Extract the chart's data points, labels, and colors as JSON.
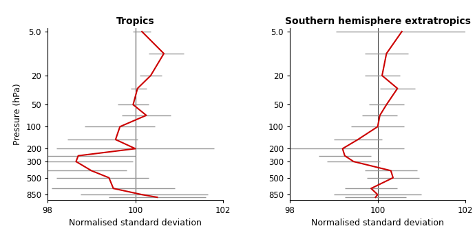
{
  "panel1_title": "Tropics",
  "panel2_title": "Southern hemisphere extratropics",
  "xlabel": "Normalised standard deviation",
  "ylabel": "Pressure (hPa)",
  "xlim": [
    98,
    102
  ],
  "xticks": [
    98,
    100,
    102
  ],
  "pressure_levels": [
    5,
    10,
    20,
    30,
    50,
    70,
    100,
    150,
    200,
    250,
    300,
    400,
    500,
    700,
    850,
    925
  ],
  "ytick_labels": [
    "5.0",
    "20",
    "50",
    "100",
    "200",
    "300",
    "500",
    "850"
  ],
  "ytick_vals": [
    5,
    20,
    50,
    100,
    200,
    300,
    500,
    850
  ],
  "panel1_values": [
    100.15,
    100.65,
    100.35,
    100.05,
    99.95,
    100.25,
    99.65,
    99.55,
    100.0,
    98.7,
    98.65,
    99.0,
    99.4,
    99.5,
    100.15,
    100.5
  ],
  "panel1_errbar_left": [
    0.2,
    0.35,
    0.25,
    0.15,
    0.35,
    0.55,
    0.8,
    1.1,
    1.8,
    1.3,
    1.5,
    1.3,
    1.2,
    1.4,
    1.4,
    1.1
  ],
  "panel1_errbar_right": [
    0.2,
    0.45,
    0.25,
    0.2,
    0.35,
    0.55,
    0.8,
    0.5,
    1.8,
    1.3,
    1.3,
    0.8,
    0.9,
    1.4,
    1.5,
    1.1
  ],
  "panel2_values": [
    100.55,
    100.2,
    100.1,
    100.45,
    100.2,
    100.05,
    100.0,
    99.55,
    99.2,
    99.25,
    99.45,
    100.3,
    100.35,
    99.85,
    100.0,
    99.95
  ],
  "panel2_errbar_left": [
    1.5,
    0.5,
    0.4,
    0.4,
    0.4,
    0.4,
    0.6,
    0.55,
    1.4,
    0.6,
    0.6,
    0.6,
    0.6,
    0.6,
    1.0,
    0.7
  ],
  "panel2_errbar_right": [
    1.5,
    0.5,
    0.4,
    0.4,
    0.4,
    0.4,
    0.6,
    0.55,
    1.4,
    0.6,
    0.6,
    0.6,
    0.6,
    0.6,
    1.0,
    0.7
  ],
  "line_color": "#cc0000",
  "errbar_color": "#999999",
  "vline_color": "#444444",
  "bg_color": "#ffffff"
}
